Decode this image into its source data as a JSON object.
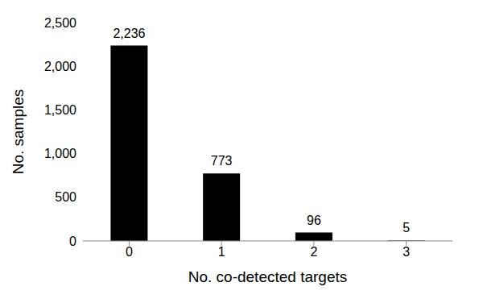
{
  "chart_data": {
    "type": "bar",
    "x_label": "No. co-detected targets",
    "y_label": "No. samples",
    "categories": [
      "0",
      "1",
      "2",
      "3"
    ],
    "values": [
      2236,
      773,
      96,
      5
    ],
    "value_labels": [
      "2,236",
      "773",
      "96",
      "5"
    ],
    "color": "#000000",
    "ylim": [
      0,
      2500
    ],
    "yticks": [
      0,
      500,
      {
        "value": 1000,
        "label": "1,000"
      },
      {
        "value": 1500,
        "label": "1,500"
      },
      {
        "value": 2000,
        "label": "2,000"
      },
      {
        "value": 2500,
        "label": "2,500"
      }
    ],
    "grid": false,
    "data_labels": true
  }
}
